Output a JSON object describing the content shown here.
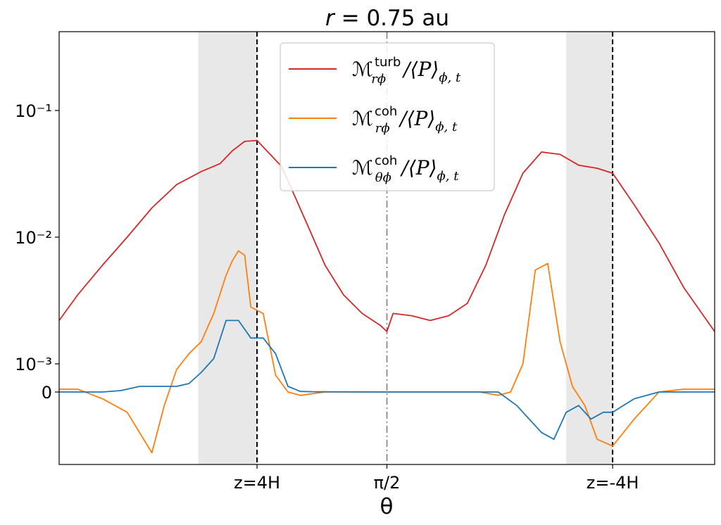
{
  "chart_data": {
    "type": "line",
    "title": "r = 0.75 au",
    "xlabel": "θ",
    "ylabel": "",
    "y_scale": "symlog",
    "x_ticks": [
      "z=4H",
      "π/2",
      "z=-4H"
    ],
    "y_ticks": [
      "10⁻¹",
      "10⁻²",
      "10⁻³",
      "0"
    ],
    "legend_position": "top-center",
    "grid": false,
    "shaded_regions": [
      [
        -3.05,
        -2.1
      ],
      [
        2.9,
        3.65
      ]
    ],
    "vertical_lines": [
      {
        "x": -2.1,
        "style": "dashed",
        "color": "#000000",
        "label": "z=4H"
      },
      {
        "x": 0,
        "style": "dashdot",
        "color": "#808080",
        "label": "π/2"
      },
      {
        "x": 3.65,
        "style": "dashed",
        "color": "#000000",
        "label": "z=-4H"
      }
    ],
    "series": [
      {
        "name": "M_rφ^turb/⟨P⟩_φ,t",
        "color": "#d62728",
        "x": [
          -5.3,
          -5.0,
          -4.6,
          -4.2,
          -3.8,
          -3.4,
          -3.0,
          -2.7,
          -2.5,
          -2.3,
          -2.1,
          -1.7,
          -1.3,
          -1.0,
          -0.7,
          -0.4,
          -0.1,
          0,
          0.1,
          0.4,
          0.7,
          1.0,
          1.3,
          1.6,
          1.9,
          2.2,
          2.5,
          2.8,
          3.1,
          3.4,
          3.65,
          4.0,
          4.4,
          4.8,
          5.3
        ],
        "y": [
          0.0022,
          0.0035,
          0.006,
          0.01,
          0.017,
          0.026,
          0.033,
          0.038,
          0.048,
          0.057,
          0.058,
          0.036,
          0.013,
          0.006,
          0.0035,
          0.0025,
          0.002,
          0.0018,
          0.0025,
          0.0024,
          0.0022,
          0.0024,
          0.003,
          0.006,
          0.015,
          0.032,
          0.047,
          0.045,
          0.037,
          0.035,
          0.032,
          0.018,
          0.009,
          0.004,
          0.0018
        ]
      },
      {
        "name": "M_rφ^coh/⟨P⟩_φ,t",
        "color": "#ff7f0e",
        "x": [
          -5.3,
          -5.0,
          -4.6,
          -4.2,
          -4.0,
          -3.8,
          -3.6,
          -3.4,
          -3.2,
          -3.0,
          -2.8,
          -2.6,
          -2.5,
          -2.4,
          -2.3,
          -2.2,
          -2.0,
          -1.8,
          -1.6,
          -1.4,
          -1.0,
          0,
          1.0,
          1.5,
          1.8,
          2.0,
          2.2,
          2.4,
          2.6,
          2.8,
          3.0,
          3.2,
          3.4,
          3.65,
          4.0,
          4.4,
          4.8,
          5.3
        ],
        "y": [
          0.0001,
          0.0001,
          -0.0001,
          -0.0003,
          -0.0006,
          -0.0009,
          -0.0002,
          0.0008,
          0.0012,
          0.0015,
          0.0025,
          0.005,
          0.0065,
          0.0078,
          0.0072,
          0.0028,
          0.0025,
          0.0006,
          0.0,
          -5e-05,
          0.0,
          0.0,
          0.0,
          0.0,
          -5e-05,
          0.0,
          0.001,
          0.0055,
          0.0062,
          0.0015,
          0.0002,
          -0.0002,
          -0.0007,
          -0.0008,
          -0.0004,
          0.0,
          0.0001,
          0.0001
        ]
      },
      {
        "name": "M_θφ^coh/⟨P⟩_φ,t",
        "color": "#1f77b4",
        "x": [
          -5.3,
          -4.6,
          -4.3,
          -4.0,
          -3.6,
          -3.4,
          -3.2,
          -3.0,
          -2.8,
          -2.6,
          -2.4,
          -2.2,
          -2.0,
          -1.8,
          -1.6,
          -1.4,
          -1.2,
          0,
          1.8,
          2.1,
          2.3,
          2.5,
          2.7,
          2.9,
          3.1,
          3.3,
          3.5,
          3.65,
          4.0,
          4.4,
          5.3
        ],
        "y": [
          0.0,
          0.0,
          5e-05,
          0.0002,
          0.0002,
          0.0002,
          0.0003,
          0.0007,
          0.0011,
          0.0022,
          0.0022,
          0.0016,
          0.0016,
          0.0012,
          0.0002,
          2e-05,
          1e-05,
          0.0,
          0.0,
          -0.0002,
          -0.0004,
          -0.0006,
          -0.0007,
          -0.0003,
          -0.0002,
          -0.0004,
          -0.0003,
          -0.0003,
          -0.0001,
          0.0,
          0.0
        ]
      }
    ]
  },
  "legend": {
    "entries": [
      {
        "base": "ℳ",
        "sup": "turb",
        "sub": "rϕ",
        "tail": "/⟨P⟩",
        "tail_sub": "ϕ, t",
        "color": "#d62728"
      },
      {
        "base": "ℳ",
        "sup": "coh",
        "sub": "rϕ",
        "tail": "/⟨P⟩",
        "tail_sub": "ϕ, t",
        "color": "#ff7f0e"
      },
      {
        "base": "ℳ",
        "sup": "coh",
        "sub": "θϕ",
        "tail": "/⟨P⟩",
        "tail_sub": "ϕ, t",
        "color": "#1f77b4"
      }
    ]
  },
  "title": {
    "italic_part": "r",
    "rest": " = 0.75 au"
  }
}
